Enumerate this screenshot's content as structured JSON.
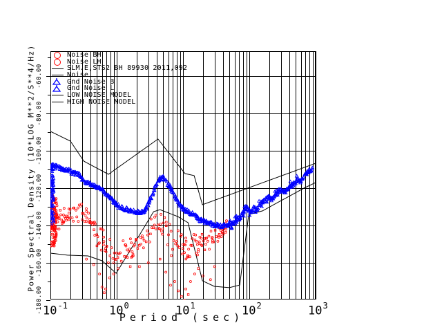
{
  "colors": {
    "background": "#ffffff",
    "axis": "#000000",
    "noise_scatter": "#ff0000",
    "gnd_noise": "#0000ff",
    "model_line": "#000000"
  },
  "legend": {
    "items": [
      {
        "symbol": "circle",
        "color": "#ff0000",
        "label": "Noise BH"
      },
      {
        "symbol": "circle",
        "color": "#ff0000",
        "label": "Noise LH"
      },
      {
        "symbol": "line",
        "color": "#000000",
        "label": "SLM.E,STS2 BH 89930 2011,092"
      },
      {
        "symbol": "line",
        "color": "#000000",
        "label": "Noise"
      },
      {
        "symbol": "triangle",
        "color": "#0000ff",
        "label": "Gnd Noise B"
      },
      {
        "symbol": "triangle",
        "color": "#0000ff",
        "label": "Gnd Noise L"
      },
      {
        "symbol": "line",
        "color": "#000000",
        "label": "LOW NOISE MODEL"
      },
      {
        "symbol": "line",
        "color": "#000000",
        "label": "HIGH NOISE MODEL"
      }
    ]
  },
  "axes": {
    "x": {
      "title": "Period (sec)",
      "scale": "log",
      "base": "10",
      "tick_exponents": [
        -1,
        0,
        1,
        2,
        3
      ],
      "minor_multiples": [
        2,
        3,
        4,
        5,
        6,
        7,
        8,
        9
      ],
      "xlim": [
        0.1,
        1000
      ]
    },
    "y": {
      "title": "Power Spectral Density (10*LOG M**2/S**4/Hz)",
      "tick_labels": [
        "-60.00",
        "-80.00",
        "-100.00",
        "-120.00",
        "-140.00",
        "-160.00",
        "-180.00"
      ],
      "tick_values": [
        -60,
        -80,
        -100,
        -120,
        -140,
        -160,
        -180
      ],
      "minor_step": 10,
      "ylim_top": -46.7,
      "ylim_bottom": -180
    }
  },
  "chart_data": {
    "type": "scatter",
    "title": "SLM.E,STS2 BH 89930 2011,092",
    "xlabel": "Period (sec)",
    "ylabel": "Power Spectral Density (10*LOG M**2/S**4/Hz)",
    "xlim": [
      0.1,
      1000
    ],
    "ylim": [
      -180,
      -46.7
    ],
    "grid": true,
    "legend_position": "top-left-inside",
    "series": [
      {
        "name": "Noise BH / Noise LH",
        "style": "scatter",
        "marker": "open-circle",
        "color": "#ff0000",
        "centerline_period_db_spread": [
          [
            0.1,
            -133,
            9
          ],
          [
            0.12,
            -136,
            8
          ],
          [
            0.145,
            -135,
            7
          ],
          [
            0.175,
            -136,
            8
          ],
          [
            0.21,
            -135,
            7
          ],
          [
            0.25,
            -133,
            6
          ],
          [
            0.3,
            -132,
            6
          ],
          [
            0.36,
            -136,
            8
          ],
          [
            0.43,
            -140,
            8
          ],
          [
            0.52,
            -145,
            9
          ],
          [
            0.62,
            -149,
            9
          ],
          [
            0.75,
            -153,
            9
          ],
          [
            0.9,
            -155,
            8
          ],
          [
            1.1,
            -155,
            8
          ],
          [
            1.35,
            -154,
            8
          ],
          [
            1.65,
            -153,
            8
          ],
          [
            2.0,
            -151,
            8
          ],
          [
            2.5,
            -150,
            8
          ],
          [
            3.0,
            -146,
            8
          ],
          [
            3.6,
            -141,
            7
          ],
          [
            4.3,
            -139,
            7
          ],
          [
            5.1,
            -142,
            8
          ],
          [
            6.1,
            -146,
            9
          ],
          [
            7.3,
            -149,
            9
          ],
          [
            8.7,
            -151,
            10
          ],
          [
            10.4,
            -152,
            9
          ],
          [
            12.5,
            -151,
            8
          ],
          [
            15,
            -150,
            8
          ],
          [
            18,
            -149,
            7
          ],
          [
            22,
            -148,
            7
          ],
          [
            27,
            -147,
            6
          ],
          [
            33,
            -145,
            6
          ],
          [
            40,
            -143,
            5
          ],
          [
            48,
            -141,
            5
          ]
        ],
        "edge_spike": {
          "period_range": [
            0.1,
            0.124
          ],
          "db_range": [
            -124,
            -151
          ],
          "count": 100
        },
        "outliers_period_db": [
          [
            0.35,
            -158
          ],
          [
            0.45,
            -161
          ],
          [
            0.55,
            -166
          ],
          [
            0.6,
            -173
          ],
          [
            0.65,
            -176
          ],
          [
            0.68,
            -174
          ],
          [
            0.78,
            -168
          ],
          [
            0.9,
            -166
          ],
          [
            1.05,
            -163
          ],
          [
            1.6,
            -162
          ],
          [
            2.2,
            -162
          ],
          [
            3.0,
            -160
          ],
          [
            4.5,
            -158
          ],
          [
            5.5,
            -165
          ],
          [
            6.5,
            -172
          ],
          [
            7.5,
            -170
          ],
          [
            8.5,
            -175
          ],
          [
            9.0,
            -181
          ],
          [
            9.5,
            -178
          ],
          [
            10.0,
            -183
          ],
          [
            10.5,
            -180
          ],
          [
            11,
            -174
          ],
          [
            12,
            -177
          ],
          [
            13,
            -170
          ],
          [
            15,
            -166
          ],
          [
            17,
            -163
          ],
          [
            20,
            -167
          ],
          [
            26,
            -169
          ],
          [
            30,
            -162
          ]
        ]
      },
      {
        "name": "Gnd Noise B / Gnd Noise L",
        "style": "dense-band",
        "marker": "open-triangle",
        "color": "#0000ff",
        "points_period_db": [
          [
            0.105,
            -109.6
          ],
          [
            0.12,
            -108.5
          ],
          [
            0.133,
            -108.9
          ],
          [
            0.15,
            -109.8
          ],
          [
            0.169,
            -110.4
          ],
          [
            0.19,
            -110.0
          ],
          [
            0.215,
            -111.9
          ],
          [
            0.24,
            -112.2
          ],
          [
            0.273,
            -113.0
          ],
          [
            0.31,
            -115.6
          ],
          [
            0.347,
            -116.7
          ],
          [
            0.4,
            -117.6
          ],
          [
            0.442,
            -118.2
          ],
          [
            0.5,
            -119.2
          ],
          [
            0.562,
            -120.0
          ],
          [
            0.63,
            -121.8
          ],
          [
            0.715,
            -123.7
          ],
          [
            0.81,
            -125.7
          ],
          [
            0.909,
            -127.4
          ],
          [
            1.03,
            -129.3
          ],
          [
            1.16,
            -130.4
          ],
          [
            1.3,
            -131.0
          ],
          [
            1.47,
            -131.5
          ],
          [
            1.65,
            -132.0
          ],
          [
            1.87,
            -132.6
          ],
          [
            2.1,
            -132.8
          ],
          [
            2.38,
            -133.0
          ],
          [
            2.67,
            -131.5
          ],
          [
            2.9,
            -129.5
          ],
          [
            3.23,
            -125.9
          ],
          [
            3.6,
            -121.9
          ],
          [
            3.91,
            -118.5
          ],
          [
            4.2,
            -116.3
          ],
          [
            4.53,
            -114.8
          ],
          [
            5.0,
            -114.1
          ],
          [
            5.5,
            -116.3
          ],
          [
            5.9,
            -117.8
          ],
          [
            6.4,
            -119.3
          ],
          [
            6.9,
            -121.5
          ],
          [
            7.4,
            -124.1
          ],
          [
            8.0,
            -126.4
          ],
          [
            8.6,
            -128.5
          ],
          [
            9.2,
            -129.7
          ],
          [
            9.9,
            -130.7
          ],
          [
            10.9,
            -131.7
          ],
          [
            11.9,
            -132.6
          ],
          [
            13.1,
            -133.4
          ],
          [
            14.4,
            -134.1
          ],
          [
            16.2,
            -135.6
          ],
          [
            18.3,
            -137.0
          ],
          [
            20.6,
            -137.8
          ],
          [
            23.3,
            -138.5
          ],
          [
            26.3,
            -139.1
          ],
          [
            29.6,
            -139.6
          ],
          [
            33.4,
            -140.0
          ],
          [
            37.6,
            -140.4
          ],
          [
            42.4,
            -140.1
          ],
          [
            47.7,
            -139.6
          ],
          [
            53.8,
            -138.9
          ],
          [
            60.7,
            -138.1
          ],
          [
            66.8,
            -136.9
          ],
          [
            73.4,
            -135.6
          ],
          [
            82.5,
            -132.6
          ],
          [
            90.4,
            -129.6
          ],
          [
            97,
            -131.9
          ],
          [
            107,
            -133.3
          ],
          [
            117,
            -130.4
          ],
          [
            129,
            -131.5
          ],
          [
            146,
            -128.5
          ],
          [
            166,
            -127.0
          ],
          [
            193,
            -124.8
          ],
          [
            224,
            -125.9
          ],
          [
            260,
            -122.2
          ],
          [
            302,
            -120.7
          ],
          [
            350,
            -121.9
          ],
          [
            404,
            -119.6
          ],
          [
            466,
            -117.8
          ],
          [
            540,
            -115.2
          ],
          [
            586,
            -116.7
          ],
          [
            678,
            -113.0
          ],
          [
            787,
            -111.1
          ],
          [
            912,
            -109.3
          ]
        ],
        "edge_spike": {
          "period_range": [
            0.1,
            0.112
          ],
          "db_range": [
            -107,
            -139.6
          ],
          "count": 70
        }
      },
      {
        "name": "LOW NOISE MODEL",
        "style": "line",
        "color": "#000000",
        "points_period_db": [
          [
            0.1,
            -154.8
          ],
          [
            0.18,
            -155.9
          ],
          [
            0.37,
            -156.3
          ],
          [
            0.6,
            -158.9
          ],
          [
            0.98,
            -165.6
          ],
          [
            1.9,
            -148.9
          ],
          [
            3.6,
            -132.6
          ],
          [
            4.5,
            -131.5
          ],
          [
            8.3,
            -135.2
          ],
          [
            11.9,
            -138.5
          ],
          [
            19.6,
            -169.6
          ],
          [
            29.6,
            -172.6
          ],
          [
            50,
            -173.3
          ],
          [
            71.6,
            -171.9
          ],
          [
            98,
            -134.1
          ],
          [
            158,
            -132.2
          ],
          [
            254,
            -128.1
          ],
          [
            412,
            -124.1
          ],
          [
            666,
            -120.0
          ],
          [
            1000,
            -117.0
          ]
        ]
      },
      {
        "name": "HIGH NOISE MODEL",
        "style": "line",
        "color": "#000000",
        "points_period_db": [
          [
            0.1,
            -89.6
          ],
          [
            0.2,
            -94.8
          ],
          [
            0.32,
            -105.6
          ],
          [
            0.75,
            -112.6
          ],
          [
            4.2,
            -93.7
          ],
          [
            10.7,
            -112.2
          ],
          [
            14.7,
            -113.3
          ],
          [
            19.6,
            -128.9
          ],
          [
            1000,
            -106.7
          ]
        ]
      }
    ]
  }
}
